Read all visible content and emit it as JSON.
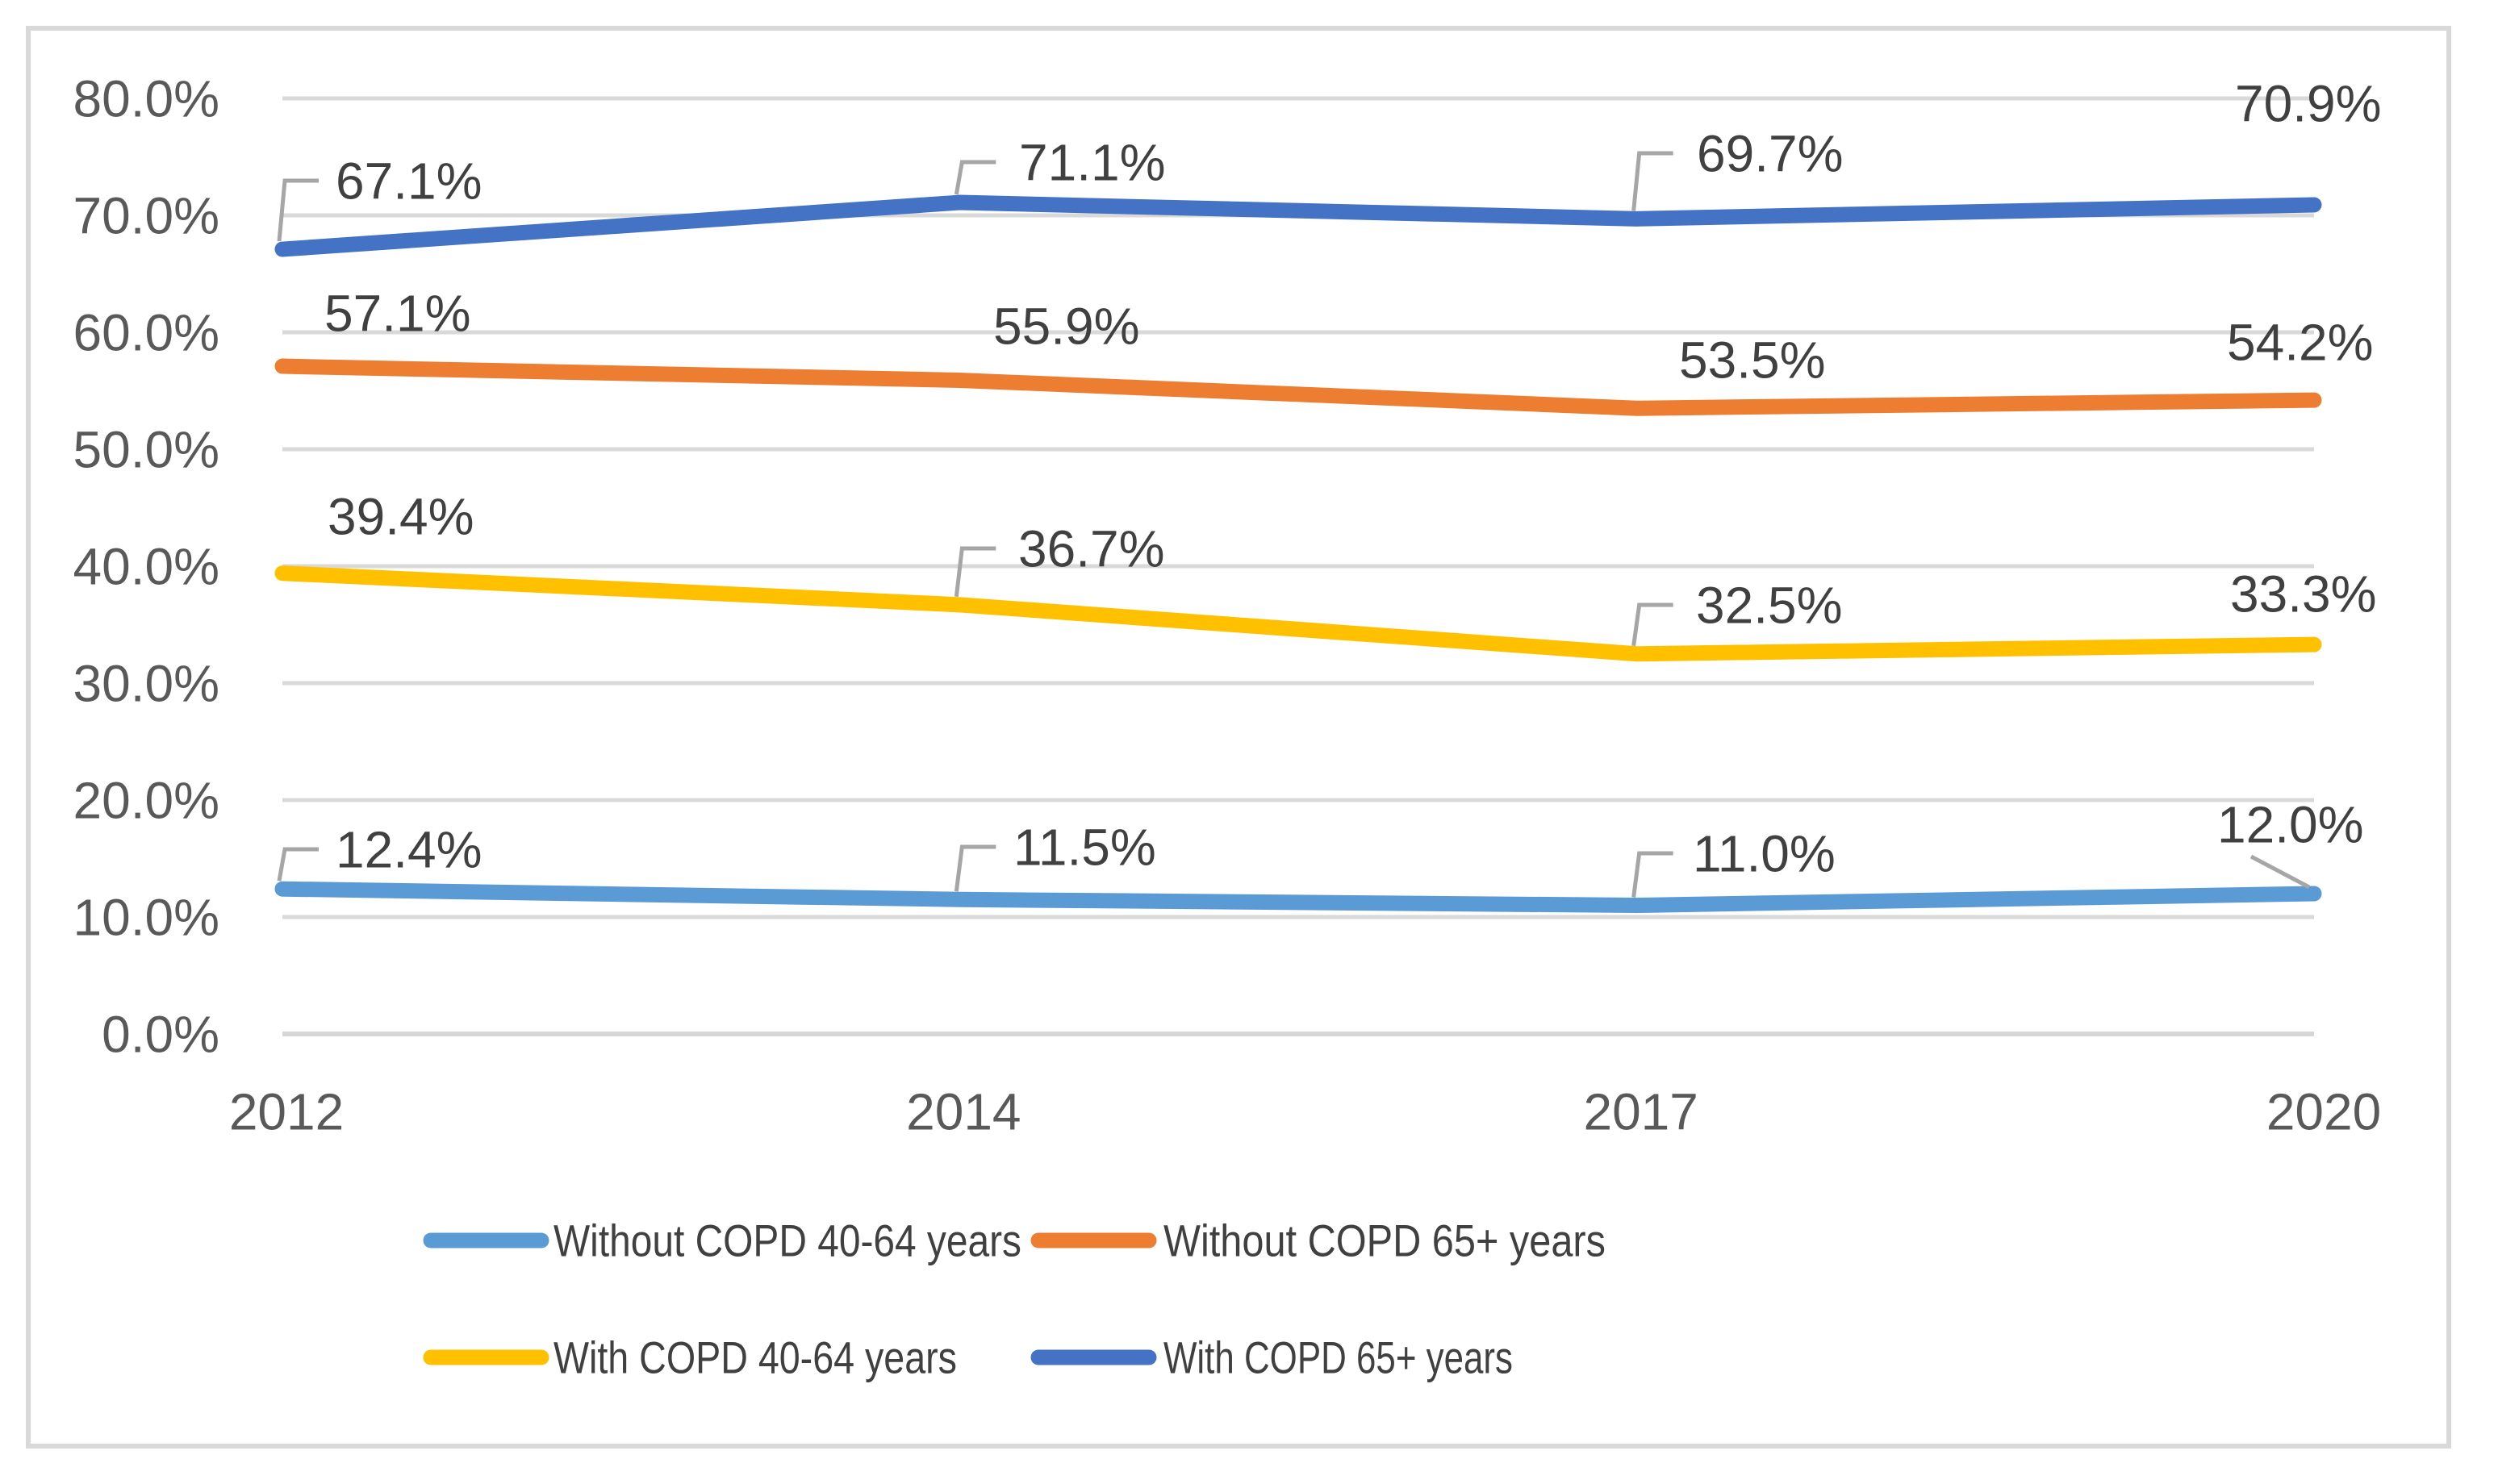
{
  "figure": {
    "background": "#ffffff",
    "border_color": "#d9d9d9"
  },
  "chart_data": {
    "type": "line",
    "title": "",
    "categories": [
      "2012",
      "2014",
      "2017",
      "2020"
    ],
    "series": [
      {
        "name": "Without COPD 40-64 years",
        "color": "#5b9bd5",
        "values": [
          12.4,
          11.5,
          11.0,
          12.0
        ],
        "point_labels": [
          "12.4%",
          "11.5%",
          "11.0%",
          "12.0%"
        ]
      },
      {
        "name": "Without COPD 65+ years",
        "color": "#ed7d31",
        "values": [
          57.1,
          55.9,
          53.5,
          54.2
        ],
        "point_labels": [
          "57.1%",
          "55.9%",
          "53.5%",
          "54.2%"
        ]
      },
      {
        "name": "With COPD 40-64 years",
        "color": "#ffc000",
        "values": [
          39.4,
          36.7,
          32.5,
          33.3
        ],
        "point_labels": [
          "39.4%",
          "36.7%",
          "32.5%",
          "33.3%"
        ]
      },
      {
        "name": "With COPD 65+ years",
        "color": "#4472c4",
        "values": [
          67.1,
          71.1,
          69.7,
          70.9
        ],
        "point_labels": [
          "67.1%",
          "71.1%",
          "69.7%",
          "70.9%"
        ]
      }
    ],
    "y_axis": {
      "min": 0,
      "max": 80,
      "tick_step": 10,
      "tick_labels": [
        "0.0%",
        "10.0%",
        "20.0%",
        "30.0%",
        "40.0%",
        "50.0%",
        "60.0%",
        "70.0%",
        "80.0%"
      ]
    },
    "x_axis": {
      "tick_labels": [
        "2012",
        "2014",
        "2017",
        "2020"
      ]
    },
    "grid": true,
    "legend_position": "bottom",
    "legend_rows": [
      [
        "Without COPD 40-64 years",
        "Without COPD 65+ years"
      ],
      [
        "With COPD 40-64 years",
        "With COPD 65+ years"
      ]
    ],
    "colors": {
      "gridline": "#d9d9d9",
      "axis_line": "#d6d6d6",
      "leader": "#a6a6a6",
      "data_label": "#404040",
      "axis_label": "#595959",
      "legend_label": "#404040"
    },
    "label_layout": [
      [
        {
          "lx": 416,
          "cy": 1053,
          "leader": "elbow"
        },
        {
          "lx": 1256,
          "cy": 1050,
          "leader": "elbow"
        },
        {
          "lx": 2098,
          "cy": 1058,
          "leader": "elbow"
        },
        {
          "lx": 2748,
          "cy": 1022,
          "leader": "diag"
        }
      ],
      [
        {
          "lx": 402,
          "cy": 388
        },
        {
          "lx": 1231,
          "cy": 404
        },
        {
          "lx": 2081,
          "cy": 446
        },
        {
          "lx": 2760,
          "cy": 424
        }
      ],
      [
        {
          "lx": 406,
          "cy": 640
        },
        {
          "lx": 1262,
          "cy": 680,
          "leader": "elbow"
        },
        {
          "lx": 2102,
          "cy": 750,
          "leader": "elbow"
        },
        {
          "lx": 2764,
          "cy": 736
        }
      ],
      [
        {
          "lx": 416,
          "cy": 224,
          "leader": "elbow"
        },
        {
          "lx": 1263,
          "cy": 201,
          "leader": "elbow"
        },
        {
          "lx": 2103,
          "cy": 190,
          "leader": "elbow"
        },
        {
          "lx": 2770,
          "cy": 128
        }
      ]
    ]
  }
}
